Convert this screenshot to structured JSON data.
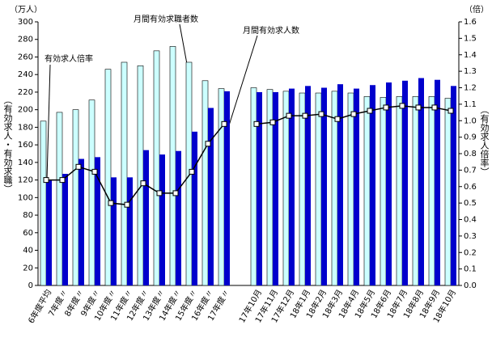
{
  "chart_data": {
    "type": "bar_line",
    "left_unit": "（万人）",
    "right_unit": "（倍）",
    "ylabel": "（有効求人・有効求職）",
    "y2label": "（有効求人倍率）",
    "annotations": [
      "有効求人倍率",
      "月間有効求職者数",
      "月間有効求人数"
    ],
    "categories": [
      "6年度平均",
      "7年度〃",
      "8年度〃",
      "9年度〃",
      "10年度〃",
      "11年度〃",
      "12年度〃",
      "13年度〃",
      "14年度〃",
      "15年度〃",
      "16年度〃",
      "17年度〃",
      null,
      "17年10月",
      "17年11月",
      "17年12月",
      "18年1月",
      "18年2月",
      "18年3月",
      "18年4月",
      "18年5月",
      "18年6月",
      "18年7月",
      "18年8月",
      "18年9月",
      "18年10月"
    ],
    "series": [
      {
        "name": "月間有効求職者数",
        "color": "#ccffff",
        "values": [
          187,
          197,
          200,
          211,
          246,
          254,
          250,
          267,
          272,
          254,
          233,
          224,
          null,
          225,
          223,
          221,
          219,
          219,
          221,
          219,
          215,
          214,
          215,
          215,
          215,
          213
        ]
      },
      {
        "name": "月間有効求人数",
        "color": "#0000cc",
        "values": [
          120,
          127,
          144,
          146,
          123,
          123,
          154,
          149,
          153,
          175,
          202,
          221,
          null,
          220,
          220,
          224,
          227,
          225,
          229,
          224,
          228,
          231,
          233,
          236,
          234,
          227
        ]
      },
      {
        "name": "有効求人倍率",
        "color": "#000000",
        "axis": "y2",
        "values": [
          0.64,
          0.64,
          0.72,
          0.69,
          0.5,
          0.49,
          0.62,
          0.56,
          0.56,
          0.69,
          0.86,
          0.98,
          null,
          0.98,
          0.99,
          1.03,
          1.03,
          1.04,
          1.01,
          1.04,
          1.06,
          1.08,
          1.09,
          1.08,
          1.08,
          1.06
        ]
      }
    ],
    "ylim": [
      0,
      300
    ],
    "yticks": [
      0,
      20,
      40,
      60,
      80,
      100,
      120,
      140,
      160,
      180,
      200,
      220,
      240,
      260,
      280,
      300
    ],
    "y2lim": [
      0,
      1.6
    ],
    "y2ticks": [
      {
        "value": 0,
        "label": "0.0"
      },
      0.1,
      0.2,
      0.3,
      0.4,
      0.5,
      0.6,
      0.7,
      0.8,
      0.9,
      {
        "value": 1,
        "label": "1.0"
      },
      1.1,
      1.2,
      1.3,
      1.4,
      1.5,
      1.6
    ],
    "grid": false
  }
}
